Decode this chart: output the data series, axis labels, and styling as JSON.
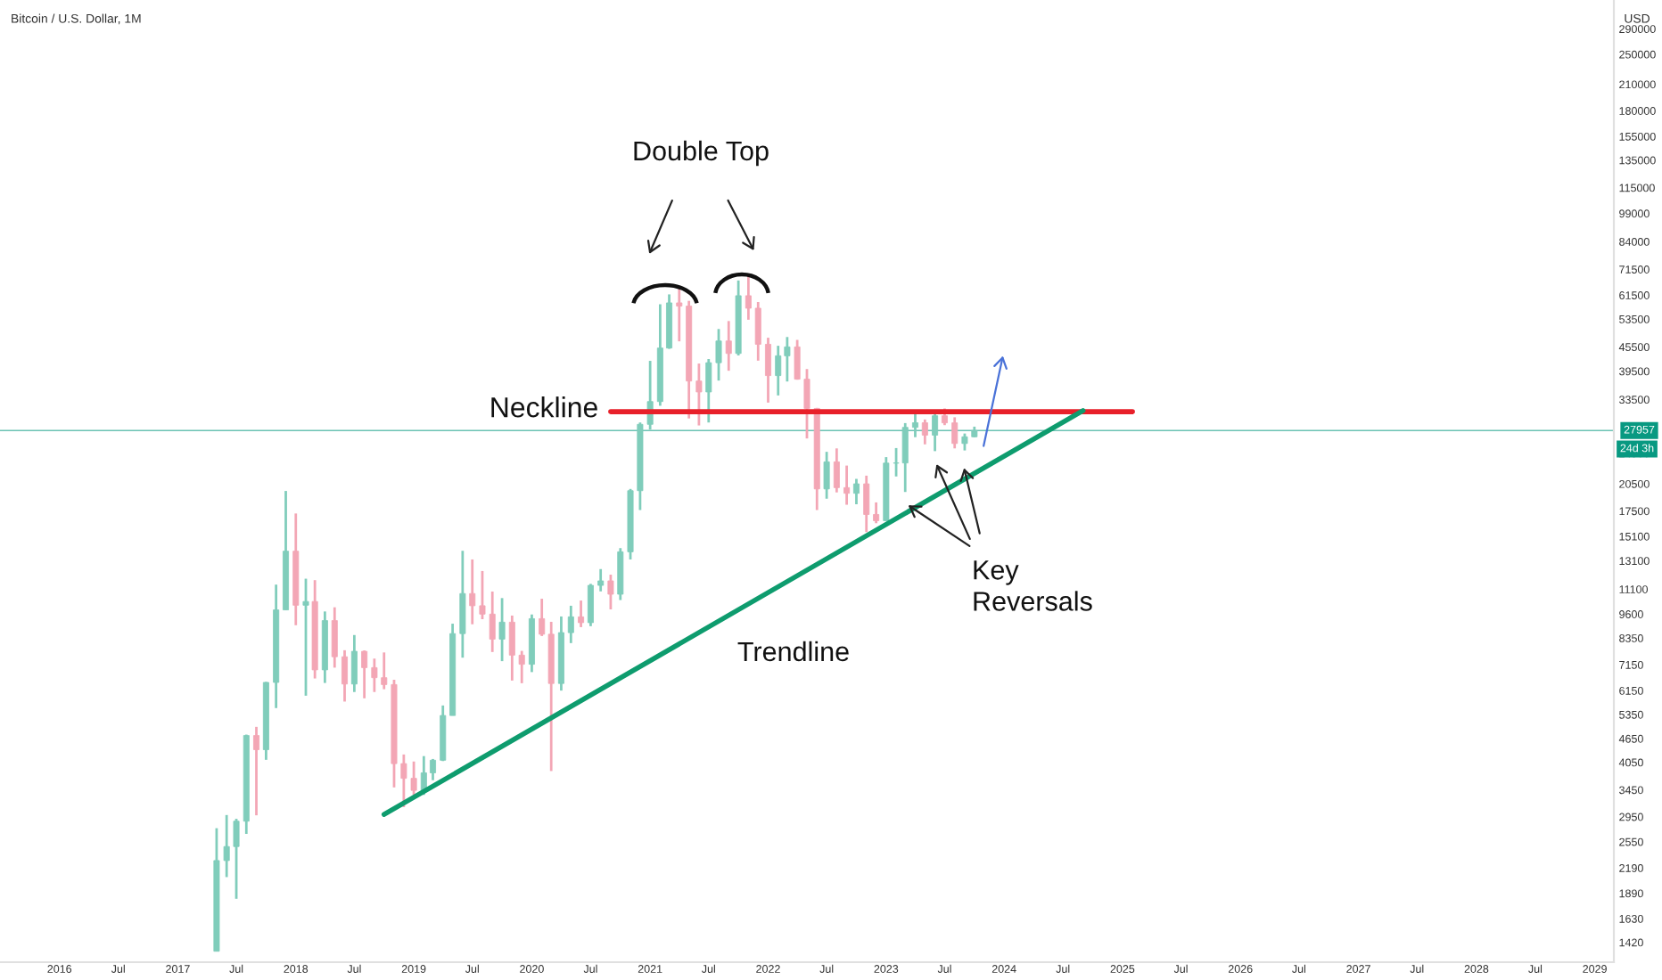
{
  "chart_data": {
    "type": "candlestick",
    "title": "Bitcoin / U.S. Dollar, 1M",
    "ylabel": "USD",
    "x": [
      "2017-05",
      "2017-06",
      "2017-07",
      "2017-08",
      "2017-09",
      "2017-10",
      "2017-11",
      "2017-12",
      "2018-01",
      "2018-02",
      "2018-03",
      "2018-04",
      "2018-05",
      "2018-06",
      "2018-07",
      "2018-08",
      "2018-09",
      "2018-10",
      "2018-11",
      "2018-12",
      "2019-01",
      "2019-02",
      "2019-03",
      "2019-04",
      "2019-05",
      "2019-06",
      "2019-07",
      "2019-08",
      "2019-09",
      "2019-10",
      "2019-11",
      "2019-12",
      "2020-01",
      "2020-02",
      "2020-03",
      "2020-04",
      "2020-05",
      "2020-06",
      "2020-07",
      "2020-08",
      "2020-09",
      "2020-10",
      "2020-11",
      "2020-12",
      "2021-01",
      "2021-02",
      "2021-03",
      "2021-04",
      "2021-05",
      "2021-06",
      "2021-07",
      "2021-08",
      "2021-09",
      "2021-10",
      "2021-11",
      "2021-12",
      "2022-01",
      "2022-02",
      "2022-03",
      "2022-04",
      "2022-05",
      "2022-06",
      "2022-07",
      "2022-08",
      "2022-09",
      "2022-10",
      "2022-11",
      "2022-12",
      "2023-01",
      "2023-02",
      "2023-03",
      "2023-04",
      "2023-05",
      "2023-06",
      "2023-07",
      "2023-08",
      "2023-09",
      "2023-10"
    ],
    "ohlc": [
      [
        1348,
        2760,
        1348,
        2286
      ],
      [
        2286,
        2980,
        2076,
        2480
      ],
      [
        2480,
        2915,
        1830,
        2875
      ],
      [
        2875,
        4760,
        2670,
        4735
      ],
      [
        4735,
        4980,
        2975,
        4360
      ],
      [
        4360,
        6470,
        4110,
        6450
      ],
      [
        6450,
        11400,
        5555,
        9840
      ],
      [
        9840,
        19666,
        9840,
        13850
      ],
      [
        13850,
        17250,
        9000,
        10110
      ],
      [
        10110,
        11800,
        5970,
        10330
      ],
      [
        10330,
        11700,
        6600,
        6940
      ],
      [
        6940,
        9750,
        6430,
        9245
      ],
      [
        9245,
        9990,
        7030,
        7490
      ],
      [
        7490,
        7780,
        5770,
        6390
      ],
      [
        6390,
        8500,
        6100,
        7730
      ],
      [
        7730,
        7770,
        5880,
        7030
      ],
      [
        7030,
        7410,
        6100,
        6630
      ],
      [
        6630,
        7680,
        6200,
        6370
      ],
      [
        6370,
        6550,
        3500,
        4020
      ],
      [
        4020,
        4240,
        3120,
        3690
      ],
      [
        3690,
        4070,
        3350,
        3440
      ],
      [
        3440,
        4200,
        3350,
        3810
      ],
      [
        3810,
        4130,
        3650,
        4100
      ],
      [
        4100,
        5640,
        4080,
        5320
      ],
      [
        5320,
        9080,
        5320,
        8570
      ],
      [
        8570,
        13880,
        7450,
        10820
      ],
      [
        10820,
        13200,
        9050,
        10080
      ],
      [
        10080,
        12340,
        9320,
        9600
      ],
      [
        9600,
        10950,
        7700,
        8300
      ],
      [
        8300,
        10540,
        7300,
        9160
      ],
      [
        9160,
        9520,
        6520,
        7560
      ],
      [
        7560,
        7750,
        6420,
        7170
      ],
      [
        7170,
        9580,
        6850,
        9350
      ],
      [
        9350,
        10500,
        8450,
        8540
      ],
      [
        8540,
        9180,
        3850,
        6410
      ],
      [
        6410,
        9470,
        6150,
        8620
      ],
      [
        8620,
        10080,
        8110,
        9450
      ],
      [
        9450,
        10390,
        8900,
        9135
      ],
      [
        9135,
        11450,
        8950,
        11350
      ],
      [
        11350,
        12480,
        10960,
        11650
      ],
      [
        11650,
        12080,
        9870,
        10780
      ],
      [
        10780,
        14100,
        10420,
        13800
      ],
      [
        13800,
        19900,
        13200,
        19700
      ],
      [
        19700,
        29300,
        17600,
        28990
      ],
      [
        28990,
        41950,
        28130,
        33100
      ],
      [
        33100,
        58330,
        32300,
        45200
      ],
      [
        45200,
        61780,
        45000,
        58800
      ],
      [
        58800,
        64900,
        47000,
        57700
      ],
      [
        57700,
        59500,
        30000,
        37300
      ],
      [
        37300,
        41300,
        28800,
        35000
      ],
      [
        35000,
        42400,
        29300,
        41500
      ],
      [
        41500,
        50500,
        37400,
        47100
      ],
      [
        47100,
        52900,
        39600,
        43800
      ],
      [
        43800,
        67000,
        43300,
        61300
      ],
      [
        61300,
        69000,
        53300,
        57000
      ],
      [
        57000,
        59100,
        42000,
        46200
      ],
      [
        46200,
        48000,
        32900,
        38500
      ],
      [
        38500,
        45800,
        34300,
        43200
      ],
      [
        43200,
        48200,
        37200,
        45500
      ],
      [
        45500,
        47400,
        37600,
        37700
      ],
      [
        37700,
        40000,
        26700,
        31800
      ],
      [
        31800,
        31900,
        17600,
        19900
      ],
      [
        19900,
        24700,
        18800,
        23300
      ],
      [
        23300,
        25200,
        19500,
        20050
      ],
      [
        20050,
        22800,
        18150,
        19400
      ],
      [
        19400,
        21100,
        18200,
        20500
      ],
      [
        20500,
        21500,
        15480,
        17150
      ],
      [
        17150,
        18400,
        16300,
        16540
      ],
      [
        16540,
        23950,
        16500,
        23130
      ],
      [
        23130,
        25250,
        21400,
        23150
      ],
      [
        23150,
        29200,
        19550,
        28480
      ],
      [
        28480,
        31000,
        26900,
        29260
      ],
      [
        29260,
        29820,
        25800,
        27220
      ],
      [
        27220,
        31400,
        24800,
        30470
      ],
      [
        30470,
        31800,
        28850,
        29240
      ],
      [
        29240,
        30200,
        25200,
        25930
      ],
      [
        25930,
        27480,
        24900,
        26960
      ],
      [
        26960,
        28600,
        26900,
        27957
      ]
    ],
    "colors": [
      "#80cdbb",
      "#80cdbb",
      "#80cdbb",
      "#80cdbb",
      "#f3a6b5",
      "#80cdbb",
      "#80cdbb",
      "#80cdbb",
      "#f3a6b5",
      "#80cdbb",
      "#f3a6b5",
      "#80cdbb",
      "#f3a6b5",
      "#f3a6b5",
      "#80cdbb",
      "#f3a6b5",
      "#f3a6b5",
      "#f3a6b5",
      "#f3a6b5",
      "#f3a6b5",
      "#f3a6b5",
      "#80cdbb",
      "#80cdbb",
      "#80cdbb",
      "#80cdbb",
      "#80cdbb",
      "#f3a6b5",
      "#f3a6b5",
      "#f3a6b5",
      "#80cdbb",
      "#f3a6b5",
      "#f3a6b5",
      "#80cdbb",
      "#f3a6b5",
      "#f3a6b5",
      "#80cdbb",
      "#80cdbb",
      "#f3a6b5",
      "#80cdbb",
      "#80cdbb",
      "#f3a6b5",
      "#80cdbb",
      "#80cdbb",
      "#80cdbb",
      "#80cdbb",
      "#80cdbb",
      "#80cdbb",
      "#f3a6b5",
      "#f3a6b5",
      "#f3a6b5",
      "#80cdbb",
      "#80cdbb",
      "#f3a6b5",
      "#80cdbb",
      "#f3a6b5",
      "#f3a6b5",
      "#f3a6b5",
      "#80cdbb",
      "#80cdbb",
      "#f3a6b5",
      "#f3a6b5",
      "#f3a6b5",
      "#80cdbb",
      "#f3a6b5",
      "#f3a6b5",
      "#80cdbb",
      "#f3a6b5",
      "#f3a6b5",
      "#80cdbb",
      "#80cdbb",
      "#80cdbb",
      "#80cdbb",
      "#f3a6b5",
      "#80cdbb",
      "#f3a6b5",
      "#f3a6b5",
      "#80cdbb",
      "#80cdbb"
    ],
    "series": [
      {
        "type": "line",
        "color": "#e8202a",
        "x": [
          "2020-09",
          "2025-02"
        ],
        "values": [
          31200,
          31200
        ]
      },
      {
        "type": "line",
        "color": "#0e9c6e",
        "x": [
          "2018-10",
          "2024-09"
        ],
        "values": [
          2990,
          31400
        ]
      }
    ],
    "ref_lines": [
      {
        "axis": "y",
        "value": 27957,
        "label": "27957",
        "color": "#089981"
      }
    ],
    "annotations": [
      "Double Top",
      "Neckline",
      "Key\nReversals",
      "Trendline",
      "24d 3h"
    ],
    "xlim": [
      "2015-07",
      "2029-03"
    ],
    "ylim": [
      1265,
      343000
    ],
    "log": true,
    "xticks": [
      {
        "value": "2016-01",
        "label": "2016"
      },
      {
        "value": "2016-07",
        "label": "Jul"
      },
      {
        "value": "2017-01",
        "label": "2017"
      },
      {
        "value": "2017-07",
        "label": "Jul"
      },
      {
        "value": "2018-01",
        "label": "2018"
      },
      {
        "value": "2018-07",
        "label": "Jul"
      },
      {
        "value": "2019-01",
        "label": "2019"
      },
      {
        "value": "2019-07",
        "label": "Jul"
      },
      {
        "value": "2020-01",
        "label": "2020"
      },
      {
        "value": "2020-07",
        "label": "Jul"
      },
      {
        "value": "2021-01",
        "label": "2021"
      },
      {
        "value": "2021-07",
        "label": "Jul"
      },
      {
        "value": "2022-01",
        "label": "2022"
      },
      {
        "value": "2022-07",
        "label": "Jul"
      },
      {
        "value": "2023-01",
        "label": "2023"
      },
      {
        "value": "2023-07",
        "label": "Jul"
      },
      {
        "value": "2024-01",
        "label": "2024"
      },
      {
        "value": "2024-07",
        "label": "Jul"
      },
      {
        "value": "2025-01",
        "label": "2025"
      },
      {
        "value": "2025-07",
        "label": "Jul"
      },
      {
        "value": "2026-01",
        "label": "2026"
      },
      {
        "value": "2026-07",
        "label": "Jul"
      },
      {
        "value": "2027-01",
        "label": "2027"
      },
      {
        "value": "2027-07",
        "label": "Jul"
      },
      {
        "value": "2028-01",
        "label": "2028"
      },
      {
        "value": "2028-07",
        "label": "Jul"
      },
      {
        "value": "2029-01",
        "label": "2029"
      }
    ],
    "yticks": [
      1420,
      1630,
      1890,
      2190,
      2550,
      2950,
      3450,
      4050,
      4650,
      5350,
      6150,
      7150,
      8350,
      9600,
      11100,
      13100,
      15100,
      17500,
      20500,
      24500,
      33500,
      39500,
      45500,
      53500,
      61500,
      71500,
      84000,
      99000,
      115000,
      135000,
      155000,
      180000,
      210000,
      250000,
      290000
    ]
  }
}
